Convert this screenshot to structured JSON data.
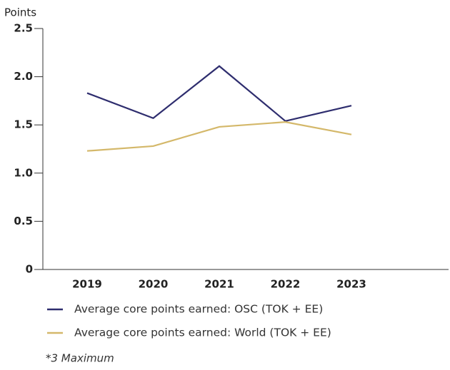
{
  "chart_data": {
    "type": "line",
    "y_label": "Points",
    "categories": [
      "2019",
      "2020",
      "2021",
      "2022",
      "2023"
    ],
    "series": [
      {
        "name": "Average core points earned: OSC (TOK + EE)",
        "color": "#2e2d6e",
        "values": [
          1.83,
          1.57,
          2.11,
          1.54,
          1.7
        ]
      },
      {
        "name": "Average core points earned: World (TOK + EE)",
        "color": "#d4b86a",
        "values": [
          1.23,
          1.28,
          1.48,
          1.53,
          1.4
        ]
      }
    ],
    "ylim": [
      0,
      2.5
    ],
    "yticks": [
      0,
      0.5,
      {
        "value": 1,
        "label": "1.0"
      },
      1.5,
      {
        "value": 2,
        "label": "2.0"
      },
      2.5
    ],
    "note": "*3 Maximum"
  }
}
